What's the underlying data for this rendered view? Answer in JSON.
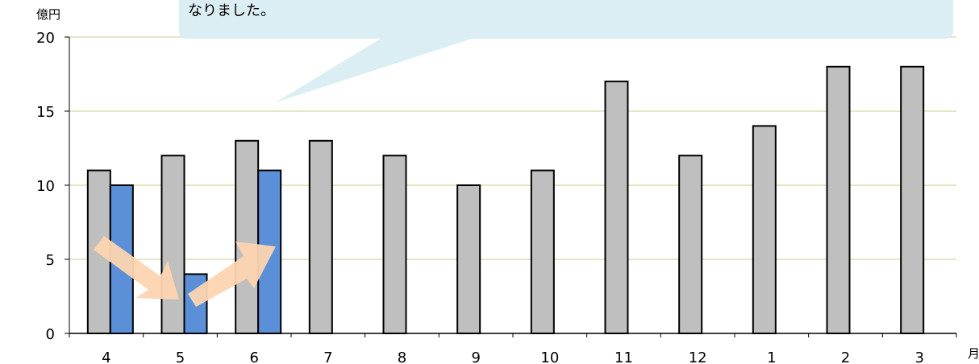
{
  "chart_data": {
    "type": "bar",
    "categories": [
      "4",
      "5",
      "6",
      "7",
      "8",
      "9",
      "10",
      "11",
      "12",
      "1",
      "2",
      "3"
    ],
    "series": [
      {
        "values": [
          11,
          12,
          13,
          13,
          12,
          10,
          11,
          17,
          12,
          14,
          18,
          18
        ],
        "color": "#bfbfbf"
      },
      {
        "values": [
          10,
          4,
          11,
          null,
          null,
          null,
          null,
          null,
          null,
          null,
          null,
          null
        ],
        "color": "#5b8fd8"
      }
    ],
    "y_unit": "億円",
    "x_unit": "月",
    "ylim": [
      0,
      20
    ],
    "yticks": [
      0,
      5,
      10,
      15,
      20
    ],
    "grid": true,
    "gridline_color": "#d9d4a8"
  },
  "callout": {
    "text": "なりました。",
    "fill": "#dbeef3"
  },
  "arrow_color": "#fdd5b1"
}
